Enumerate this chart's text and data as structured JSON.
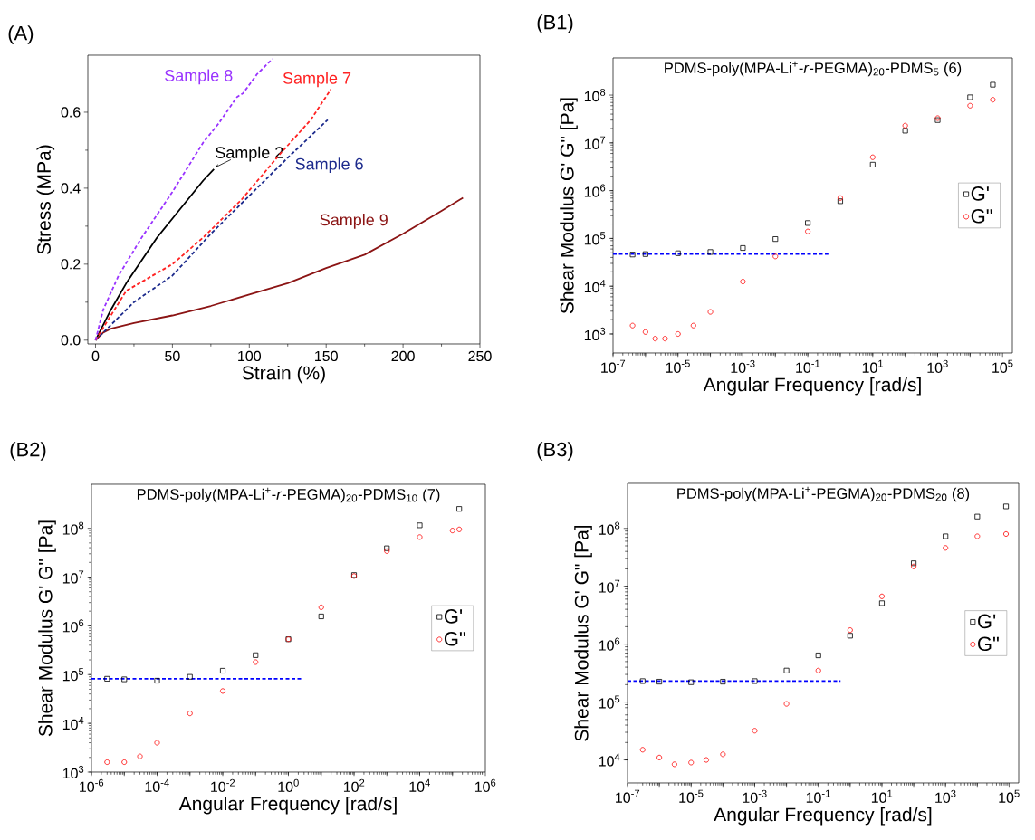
{
  "chart_data": [
    {
      "type": "line",
      "title": "(A)",
      "xlabel": "Strain (%)",
      "ylabel": "Stress (MPa)",
      "xlim": [
        -5,
        250
      ],
      "ylim": [
        -0.01,
        0.75
      ],
      "xticks": [
        0,
        50,
        100,
        150,
        200,
        250
      ],
      "yticks": [
        {
          "value": 0,
          "label": "0.0"
        },
        0.2,
        0.4,
        0.6
      ],
      "legend": false,
      "grid": false,
      "series": [
        {
          "name": "Sample 2",
          "color": "#000000",
          "line_style": "solid",
          "x": [
            0,
            10,
            20,
            30,
            40,
            50,
            60,
            70,
            77
          ],
          "values": [
            0,
            0.08,
            0.15,
            0.21,
            0.27,
            0.32,
            0.37,
            0.42,
            0.45
          ]
        },
        {
          "name": "Sample 8",
          "color": "#9933ff",
          "line_style": "dashed",
          "x": [
            0,
            5,
            15,
            30,
            50,
            70,
            80,
            92,
            96,
            105,
            115
          ],
          "values": [
            0,
            0.08,
            0.17,
            0.27,
            0.39,
            0.52,
            0.57,
            0.64,
            0.65,
            0.7,
            0.74
          ]
        },
        {
          "name": "Sample 7",
          "color": "#ff2222",
          "line_style": "dashed",
          "x": [
            0,
            20,
            50,
            70,
            95,
            120,
            140,
            153
          ],
          "values": [
            0,
            0.13,
            0.2,
            0.27,
            0.37,
            0.49,
            0.58,
            0.66
          ]
        },
        {
          "name": "Sample 6",
          "color": "#1c2a8c",
          "line_style": "dashed",
          "x": [
            0,
            25,
            50,
            75,
            100,
            125,
            151
          ],
          "values": [
            0,
            0.1,
            0.17,
            0.28,
            0.38,
            0.48,
            0.58
          ]
        },
        {
          "name": "Sample 9",
          "color": "#8b1414",
          "line_style": "solid",
          "x": [
            0,
            5,
            10,
            25,
            50,
            75,
            100,
            125,
            150,
            175,
            200,
            225,
            239
          ],
          "values": [
            0,
            0.02,
            0.03,
            0.045,
            0.065,
            0.09,
            0.12,
            0.15,
            0.19,
            0.225,
            0.28,
            0.34,
            0.375
          ]
        }
      ]
    },
    {
      "type": "scatter",
      "title": "(B1)",
      "subtitle": "PDMS-poly(MPA-Li$^{+}$-*r*-PEGMA)$_{20}$-PDMS$_{5}$ (6)",
      "xlabel": "Angular Frequency [rad/s]",
      "ylabel": "Shear Modulus G' G\" [Pa]",
      "log": "xy",
      "legend": "right",
      "grid": false,
      "xlim": [
        1e-07,
        200000.0
      ],
      "ylim": [
        400,
        600000000.0
      ],
      "xticks": [
        {
          "value": 1e-07,
          "label": "10$^{-7}$"
        },
        {
          "value": 1e-06,
          "label": null
        },
        {
          "value": 1e-05,
          "label": "10$^{-5}$"
        },
        {
          "value": 0.0001,
          "label": null
        },
        {
          "value": 0.001,
          "label": "10$^{-3}$"
        },
        {
          "value": 0.01,
          "label": null
        },
        {
          "value": 0.1,
          "label": "10$^{-1}$"
        },
        {
          "value": 1,
          "label": null
        },
        {
          "value": 10,
          "label": "10$^{1}$"
        },
        {
          "value": 100,
          "label": null
        },
        {
          "value": 1000,
          "label": "10$^{3}$"
        },
        {
          "value": 10000,
          "label": null
        },
        {
          "value": 100000,
          "label": "10$^{5}$"
        }
      ],
      "yticks": [
        {
          "value": 1000,
          "label": "10$^{3}$"
        },
        {
          "value": 10000,
          "label": "10$^{4}$"
        },
        {
          "value": 100000,
          "label": "10$^{5}$"
        },
        {
          "value": 1000000,
          "label": "10$^{6}$"
        },
        {
          "value": 10000000,
          "label": "10$^{7}$"
        },
        {
          "value": 100000000,
          "label": "10$^{8}$"
        }
      ],
      "series": [
        {
          "name": "G'",
          "color": "#000000",
          "marker": "square",
          "x": [
            4e-07,
            1e-06,
            1e-05,
            0.0001,
            0.001,
            0.01,
            0.1,
            1,
            10,
            100,
            1000,
            10000,
            50000
          ],
          "values": [
            46000,
            47000,
            49000,
            52000,
            63000,
            97000,
            210000,
            600000,
            3500000,
            18000000,
            30000000,
            90000000,
            165000000
          ]
        },
        {
          "name": "G\"",
          "color": "#ff0000",
          "marker": "circle",
          "x": [
            4e-07,
            1e-06,
            2e-06,
            4e-06,
            1e-05,
            3e-05,
            0.0001,
            0.001,
            0.01,
            0.1,
            1,
            10,
            100,
            1000,
            10000,
            50000
          ],
          "values": [
            1500,
            1100,
            800,
            800,
            1000,
            1500,
            2900,
            12500,
            42000,
            140000,
            700000,
            5000000,
            23000000,
            33000000,
            60000000,
            80000000
          ]
        },
        {
          "type": "line",
          "color": "#0000ff",
          "line_style": "dashed",
          "marker": "none",
          "x": [
            1e-07,
            0.43
          ],
          "values": [
            47000,
            47000
          ]
        }
      ]
    },
    {
      "type": "scatter",
      "title": "(B2)",
      "subtitle": "PDMS-poly(MPA-Li$^{+}$-*r*-PEGMA)$_{20}$-PDMS$_{10}$ (7)",
      "xlabel": "Angular Frequency [rad/s]",
      "ylabel": "Shear Modulus G' G\" [Pa]",
      "log": "xy",
      "legend": "right",
      "grid": false,
      "xlim": [
        1e-06,
        1000000.0
      ],
      "ylim": [
        1000,
        800000000.0
      ],
      "xticks": [
        {
          "value": 1e-06,
          "label": "10$^{-6}$"
        },
        {
          "value": 1e-05,
          "label": null
        },
        {
          "value": 0.0001,
          "label": "10$^{-4}$"
        },
        {
          "value": 0.001,
          "label": null
        },
        {
          "value": 0.01,
          "label": "10$^{-2}$"
        },
        {
          "value": 0.1,
          "label": null
        },
        {
          "value": 1,
          "label": "10$^{0}$"
        },
        {
          "value": 10,
          "label": null
        },
        {
          "value": 100,
          "label": "10$^{2}$"
        },
        {
          "value": 1000,
          "label": null
        },
        {
          "value": 10000,
          "label": "10$^{4}$"
        },
        {
          "value": 100000,
          "label": null
        },
        {
          "value": 1000000,
          "label": "10$^{6}$"
        }
      ],
      "yticks": [
        {
          "value": 1000,
          "label": "10$^{3}$"
        },
        {
          "value": 10000,
          "label": "10$^{4}$"
        },
        {
          "value": 100000,
          "label": "10$^{5}$"
        },
        {
          "value": 1000000,
          "label": "10$^{6}$"
        },
        {
          "value": 10000000,
          "label": "10$^{7}$"
        },
        {
          "value": 100000000,
          "label": "10$^{8}$"
        }
      ],
      "series": [
        {
          "name": "G'",
          "color": "#000000",
          "marker": "square",
          "x": [
            3e-06,
            1e-05,
            0.0001,
            0.001,
            0.01,
            0.1,
            1,
            10,
            100,
            1000,
            10000,
            160000
          ],
          "values": [
            82000,
            80000,
            75000,
            90000,
            120000,
            250000,
            530000,
            1560000,
            11000000,
            39000000,
            115000000,
            250000000
          ]
        },
        {
          "name": "G\"",
          "color": "#ff0000",
          "marker": "circle",
          "x": [
            3e-06,
            1e-05,
            3e-05,
            0.0001,
            0.001,
            0.01,
            0.1,
            1,
            10,
            100,
            1000,
            10000,
            100000,
            160000
          ],
          "values": [
            1600,
            1600,
            2100,
            4000,
            16000,
            46000,
            180000,
            530000,
            2400000,
            10500000,
            34000000,
            66000000,
            90000000,
            95000000
          ]
        },
        {
          "type": "line",
          "color": "#0000ff",
          "line_style": "dashed",
          "marker": "none",
          "x": [
            1e-06,
            2.7
          ],
          "values": [
            82000,
            82000
          ]
        }
      ]
    },
    {
      "type": "scatter",
      "title": "(B3)",
      "subtitle": "PDMS-poly(MPA-Li$^{+}$-PEGMA)$_{20}$-PDMS$_{20}$ (8)",
      "xlabel": "Angular Frequency [rad/s]",
      "ylabel": "Shear Modulus G' G\" [Pa]",
      "log": "xy",
      "legend": "right",
      "grid": false,
      "xlim": [
        1e-07,
        200000.0
      ],
      "ylim": [
        4000,
        600000000.0
      ],
      "xticks": [
        {
          "value": 1e-07,
          "label": "10$^{-7}$"
        },
        {
          "value": 1e-06,
          "label": null
        },
        {
          "value": 1e-05,
          "label": "10$^{-5}$"
        },
        {
          "value": 0.0001,
          "label": null
        },
        {
          "value": 0.001,
          "label": "10$^{-3}$"
        },
        {
          "value": 0.01,
          "label": null
        },
        {
          "value": 0.1,
          "label": "10$^{-1}$"
        },
        {
          "value": 1,
          "label": null
        },
        {
          "value": 10,
          "label": "10$^{1}$"
        },
        {
          "value": 100,
          "label": null
        },
        {
          "value": 1000,
          "label": "10$^{3}$"
        },
        {
          "value": 10000,
          "label": null
        },
        {
          "value": 100000,
          "label": "10$^{5}$"
        }
      ],
      "yticks": [
        {
          "value": 10000,
          "label": "10$^{4}$"
        },
        {
          "value": 100000,
          "label": "10$^{5}$"
        },
        {
          "value": 1000000,
          "label": "10$^{6}$"
        },
        {
          "value": 10000000,
          "label": "10$^{7}$"
        },
        {
          "value": 100000000,
          "label": "10$^{8}$"
        }
      ],
      "series": [
        {
          "name": "G'",
          "color": "#000000",
          "marker": "square",
          "x": [
            3e-07,
            1e-06,
            1e-05,
            0.0001,
            0.001,
            0.01,
            0.1,
            1,
            10,
            100,
            1000,
            10000,
            80000
          ],
          "values": [
            230000,
            225000,
            220000,
            225000,
            230000,
            350000,
            640000,
            1400000,
            5100000,
            25000000,
            73000000,
            160000000,
            240000000
          ]
        },
        {
          "name": "G\"",
          "color": "#ff0000",
          "marker": "circle",
          "x": [
            3e-07,
            1e-06,
            3e-06,
            1e-05,
            3e-05,
            0.0001,
            0.001,
            0.01,
            0.1,
            1,
            10,
            100,
            1000,
            10000,
            80000
          ],
          "values": [
            15000,
            11000,
            8400,
            9000,
            10000,
            12500,
            32000,
            93000,
            350000,
            1750000,
            6700000,
            22000000,
            46000000,
            73000000,
            80000000
          ]
        },
        {
          "type": "line",
          "color": "#0000ff",
          "line_style": "dashed",
          "marker": "none",
          "x": [
            1e-07,
            0.5
          ],
          "values": [
            230000,
            230000
          ]
        }
      ]
    }
  ]
}
